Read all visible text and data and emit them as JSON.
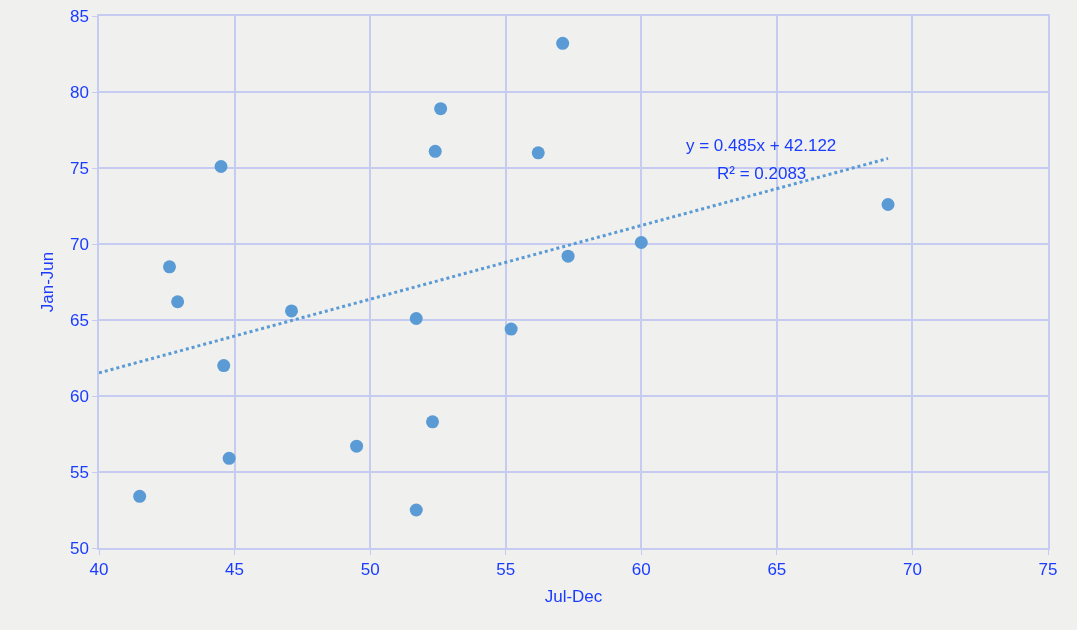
{
  "chart_data": {
    "type": "scatter",
    "xlabel": "Jul-Dec",
    "ylabel": "Jan-Jun",
    "xlim": [
      40,
      75
    ],
    "xticks": [
      40,
      45,
      50,
      55,
      60,
      65,
      70,
      75
    ],
    "ylim": [
      50,
      85
    ],
    "yticks": [
      50,
      55,
      60,
      65,
      70,
      75,
      80,
      85
    ],
    "grid": true,
    "marker": "circle",
    "series": [
      {
        "color": "#5b9bd5",
        "x": [
          41.5,
          42.6,
          42.9,
          44.5,
          44.6,
          44.8,
          47.1,
          49.5,
          51.7,
          51.7,
          52.3,
          52.4,
          52.6,
          55.2,
          56.2,
          57.1,
          57.3,
          60.0,
          69.1
        ],
        "values": [
          53.4,
          68.5,
          66.2,
          75.1,
          62.0,
          55.9,
          65.6,
          56.7,
          65.1,
          52.5,
          58.3,
          76.1,
          78.9,
          64.4,
          76.0,
          83.2,
          69.2,
          70.1,
          72.6
        ]
      },
      {
        "type": "line",
        "color": "#5b9bd5",
        "line_style": "dotted",
        "marker": "none",
        "x": [
          40,
          69.1
        ],
        "values": [
          61.52,
          75.63
        ]
      }
    ],
    "annotations": [
      "y = 0.485x + 42.122",
      "R² = 0.2083"
    ]
  }
}
